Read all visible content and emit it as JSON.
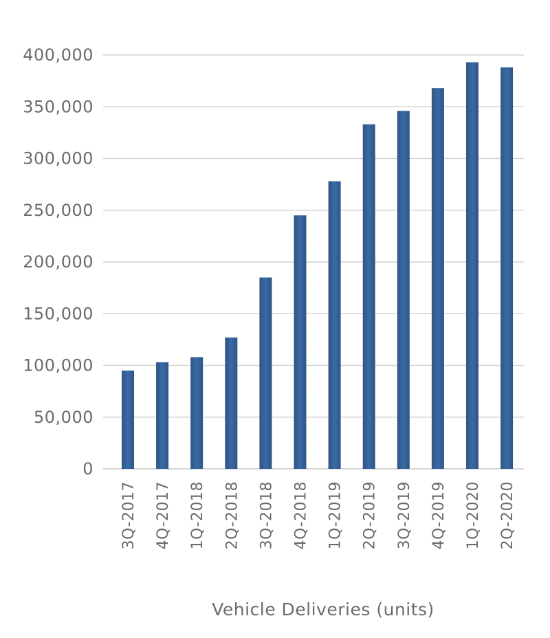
{
  "chart_data": {
    "type": "bar",
    "categories": [
      "3Q-2017",
      "4Q-2017",
      "1Q-2018",
      "2Q-2018",
      "3Q-2018",
      "4Q-2018",
      "1Q-2019",
      "2Q-2019",
      "3Q-2019",
      "4Q-2019",
      "1Q-2020",
      "2Q-2020"
    ],
    "values": [
      95000,
      103000,
      108000,
      127000,
      185000,
      245000,
      278000,
      333000,
      346000,
      368000,
      393000,
      388000
    ],
    "title": "",
    "xlabel": "Vehicle Deliveries (units)",
    "ylabel": "",
    "ylim": [
      0,
      400000
    ],
    "yticks": [
      0,
      50000,
      100000,
      150000,
      200000,
      250000,
      300000,
      350000,
      400000
    ],
    "ytick_labels": [
      "0",
      "50,000",
      "100,000",
      "150,000",
      "200,000",
      "250,000",
      "300,000",
      "350,000",
      "400,000"
    ],
    "grid": true,
    "bar_color": "#3a6aa6",
    "bar_color_edge": "#2f5583"
  }
}
